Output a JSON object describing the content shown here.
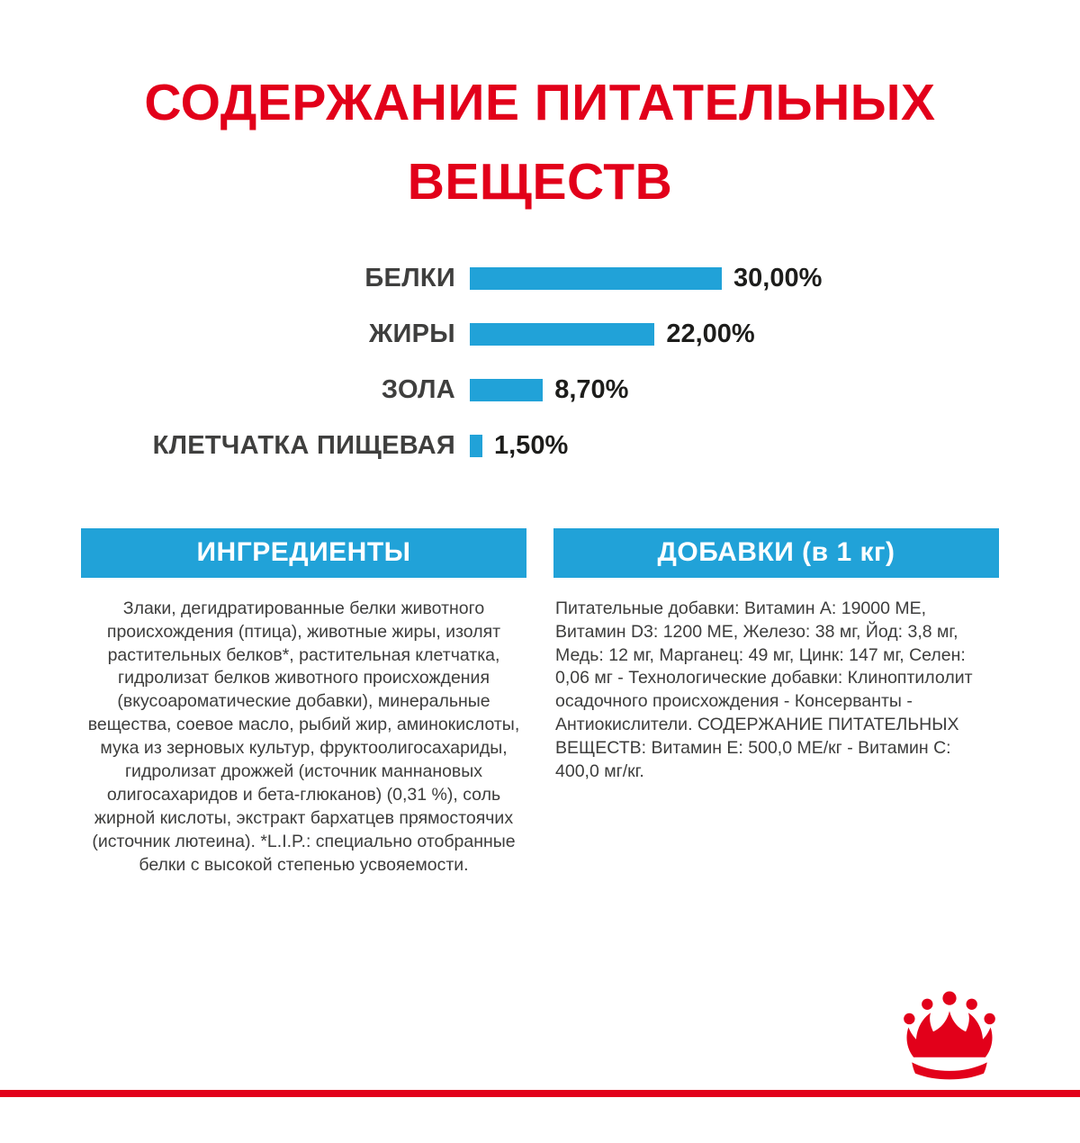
{
  "page": {
    "title_line1": "СОДЕРЖАНИЕ ПИТАТЕЛЬНЫХ",
    "title_line2": "ВЕЩЕСТВ"
  },
  "chart_data": {
    "type": "bar",
    "orientation": "horizontal",
    "categories": [
      "БЕЛКИ",
      "ЖИРЫ",
      "ЗОЛА",
      "КЛЕТЧАТКА ПИЩЕВАЯ"
    ],
    "values": [
      30.0,
      22.0,
      8.7,
      1.5
    ],
    "value_labels": [
      "30,00%",
      "22,00%",
      "8,70%",
      "1,50%"
    ],
    "xlim": [
      0,
      30
    ],
    "bar_color": "#21a2d8",
    "grid": false,
    "legend": false
  },
  "sections": {
    "ingredients": {
      "header": "ИНГРЕДИЕНТЫ",
      "body": "Злаки, дегидратированные белки животного происхождения (птица), животные жиры, изолят растительных белков*, растительная клетчатка, гидролизат белков животного происхождения (вкусоароматические добавки), минеральные вещества, соевое масло, рыбий жир, аминокислоты, мука из зерновых культур, фруктоолигосахариды, гидролизат дрожжей (источник маннановых олигосахаридов и бета-глюканов) (0,31 %), соль жирной кислоты, экстракт бархатцев прямостоячих (источник лютеина). *L.I.P.: специально отобранные белки с высокой степенью усвояемости."
    },
    "additives": {
      "header": "ДОБАВКИ (в 1 кг)",
      "body": "Питательные добавки: Витамин A: 19000 ME, Витамин D3: 1200 ME, Железо: 38 мг, Йод: 3,8 мг, Медь: 12 мг, Марганец: 49 мг, Цинк: 147 мг, Селен: 0,06 мг - Технологические добавки: Клиноптилолит осадочного происхождения - Консерванты - Антиокислители. СОДЕРЖАНИЕ ПИТАТЕЛЬНЫХ ВЕЩЕСТВ: Витамин E: 500,0 МЕ/кг - Витамин C: 400,0 мг/кг."
    }
  },
  "branding": {
    "logo_name": "royal-canin-crown",
    "accent_red": "#e2001a",
    "accent_blue": "#21a2d8"
  }
}
